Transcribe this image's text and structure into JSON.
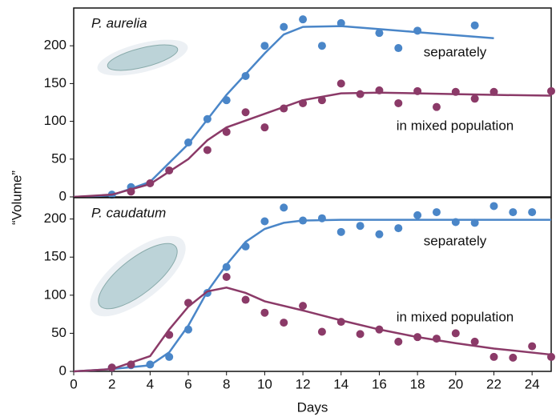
{
  "chart_data": [
    {
      "type": "scatter",
      "panel_label": "P. aurelia",
      "ylabel": "“Volume”",
      "xlim": [
        0,
        25
      ],
      "ylim": [
        0,
        250
      ],
      "yticks": [
        0,
        50,
        100,
        150,
        200
      ],
      "series": [
        {
          "name": "separately",
          "color": "#4a86c8",
          "x": [
            2,
            3,
            6,
            7,
            8,
            9,
            10,
            11,
            12,
            13,
            14,
            16,
            17,
            18,
            21
          ],
          "values": [
            3,
            13,
            72,
            103,
            128,
            160,
            200,
            225,
            235,
            200,
            230,
            217,
            197,
            220,
            227
          ],
          "fit_x": [
            0,
            2,
            4,
            6,
            8,
            10,
            11,
            12,
            14,
            16,
            18,
            20,
            22
          ],
          "fit_values": [
            0,
            2,
            20,
            70,
            135,
            190,
            215,
            225,
            226,
            222,
            218,
            214,
            210
          ]
        },
        {
          "name": "in mixed population",
          "color": "#8b3a68",
          "x": [
            3,
            4,
            5,
            7,
            8,
            9,
            10,
            11,
            12,
            13,
            14,
            15,
            16,
            17,
            18,
            19,
            20,
            21,
            22,
            25
          ],
          "values": [
            7,
            18,
            35,
            62,
            86,
            112,
            92,
            117,
            124,
            128,
            150,
            136,
            141,
            124,
            140,
            119,
            139,
            130,
            139,
            140
          ],
          "fit_x": [
            0,
            2,
            4,
            6,
            7,
            8,
            10,
            12,
            14,
            16,
            18,
            20,
            22,
            25
          ],
          "fit_values": [
            0,
            3,
            17,
            50,
            75,
            92,
            110,
            128,
            137,
            138,
            137,
            136,
            135,
            134
          ]
        }
      ]
    },
    {
      "type": "scatter",
      "panel_label": "P. caudatum",
      "xlabel": "Days",
      "xlim": [
        0,
        25
      ],
      "ylim": [
        0,
        228
      ],
      "yticks": [
        0,
        50,
        100,
        150,
        200
      ],
      "xticks": [
        0,
        2,
        4,
        6,
        8,
        10,
        12,
        14,
        16,
        18,
        20,
        22,
        24
      ],
      "series": [
        {
          "name": "separately",
          "color": "#4a86c8",
          "x": [
            2,
            3,
            4,
            5,
            6,
            7,
            8,
            9,
            10,
            11,
            12,
            13,
            14,
            15,
            16,
            17,
            18,
            19,
            20,
            21,
            22,
            23,
            24
          ],
          "values": [
            5,
            8,
            9,
            19,
            55,
            103,
            137,
            164,
            197,
            215,
            198,
            201,
            183,
            191,
            180,
            188,
            205,
            209,
            196,
            195,
            217,
            209,
            209
          ],
          "fit_x": [
            0,
            2,
            4,
            5,
            6,
            7,
            8,
            9,
            10,
            11,
            12,
            14,
            18,
            22,
            25
          ],
          "fit_values": [
            0,
            3,
            8,
            25,
            60,
            105,
            140,
            170,
            187,
            195,
            198,
            199,
            199,
            199,
            199
          ]
        },
        {
          "name": "in mixed population",
          "color": "#8b3a68",
          "x": [
            2,
            3,
            5,
            6,
            8,
            9,
            10,
            11,
            12,
            13,
            14,
            15,
            16,
            17,
            18,
            19,
            20,
            21,
            22,
            23,
            24,
            25
          ],
          "values": [
            5,
            9,
            48,
            90,
            124,
            94,
            77,
            64,
            86,
            52,
            65,
            49,
            55,
            39,
            45,
            43,
            50,
            39,
            19,
            18,
            33,
            19
          ],
          "fit_x": [
            0,
            2,
            4,
            5,
            6,
            7,
            8,
            9,
            10,
            12,
            14,
            16,
            18,
            20,
            22,
            25
          ],
          "fit_values": [
            0,
            3,
            20,
            55,
            85,
            105,
            110,
            103,
            92,
            80,
            67,
            55,
            45,
            37,
            30,
            22
          ]
        }
      ]
    }
  ]
}
